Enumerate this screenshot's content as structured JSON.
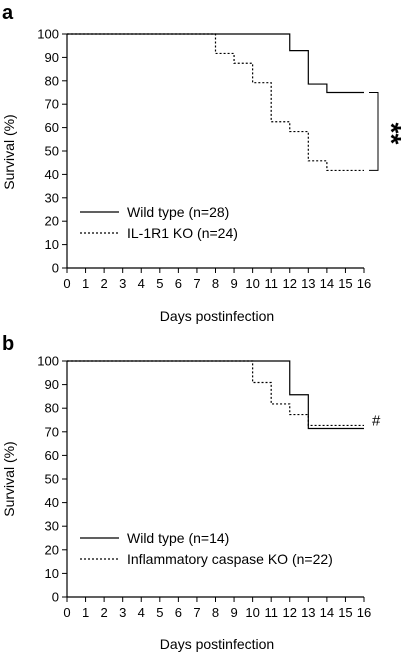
{
  "chart_data": [
    {
      "type": "line",
      "panel_label": "a",
      "xlabel": "Days postinfection",
      "ylabel": "Survival (%)",
      "xlim": [
        0,
        16
      ],
      "ylim": [
        0,
        100
      ],
      "xticks": [
        "0",
        "1",
        "2",
        "3",
        "4",
        "5",
        "6",
        "7",
        "8",
        "9",
        "10",
        "11",
        "12",
        "13",
        "14",
        "15",
        "16"
      ],
      "yticks": [
        "0",
        "10",
        "20",
        "30",
        "40",
        "50",
        "60",
        "70",
        "80",
        "90",
        "100"
      ],
      "step": true,
      "grid": false,
      "legend_position": "lower-left",
      "series": [
        {
          "name": "Wild type (n=28)",
          "style": "solid",
          "x": [
            0,
            12,
            13,
            14,
            16
          ],
          "y": [
            100,
            92.9,
            78.6,
            75,
            75
          ]
        },
        {
          "name": "IL-1R1 KO (n=24)",
          "style": "dotted",
          "x": [
            0,
            8,
            9,
            10,
            11,
            12,
            13,
            14,
            16
          ],
          "y": [
            100,
            91.7,
            87.5,
            79.2,
            62.5,
            58.3,
            45.8,
            41.7,
            41.7
          ]
        }
      ],
      "annotation": {
        "text": "**",
        "between": [
          75,
          41.7
        ],
        "position": "right"
      }
    },
    {
      "type": "line",
      "panel_label": "b",
      "xlabel": "Days postinfection",
      "ylabel": "Survival (%)",
      "xlim": [
        0,
        16
      ],
      "ylim": [
        0,
        100
      ],
      "xticks": [
        "0",
        "1",
        "2",
        "3",
        "4",
        "5",
        "6",
        "7",
        "8",
        "9",
        "10",
        "11",
        "12",
        "13",
        "14",
        "15",
        "16"
      ],
      "yticks": [
        "0",
        "10",
        "20",
        "30",
        "40",
        "50",
        "60",
        "70",
        "80",
        "90",
        "100"
      ],
      "step": true,
      "grid": false,
      "legend_position": "lower-left",
      "series": [
        {
          "name": "Wild type (n=14)",
          "style": "solid",
          "x": [
            0,
            12,
            13,
            16
          ],
          "y": [
            100,
            85.7,
            71.4,
            71.4
          ]
        },
        {
          "name": "Inflammatory caspase KO (n=22)",
          "style": "dotted",
          "x": [
            0,
            10,
            11,
            12,
            13,
            16
          ],
          "y": [
            100,
            90.9,
            81.8,
            77.3,
            72.7,
            72.7
          ]
        }
      ],
      "annotation": {
        "text": "#",
        "position": "right"
      }
    }
  ]
}
